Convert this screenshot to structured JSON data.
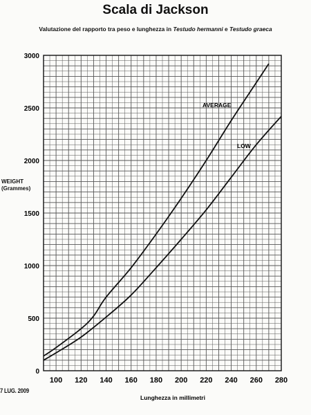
{
  "chart_data": {
    "type": "line",
    "title": "Scala di Jackson",
    "subtitle": {
      "prefix": "Valutazione del rapporto tra peso e lunghezza in ",
      "species1": "Testudo hermanni",
      "conjunction": " e ",
      "species2": "Testudo graeca"
    },
    "xlabel": "Lunghezza in millimetri",
    "ylabel_line1": "WEIGHT",
    "ylabel_line2": "(Grammes)",
    "xlim": [
      90,
      280
    ],
    "ylim": [
      0,
      3000
    ],
    "xticks": [
      100,
      120,
      140,
      160,
      180,
      200,
      220,
      240,
      260,
      280
    ],
    "yticks": [
      0,
      500,
      1000,
      1500,
      2000,
      2500,
      3000
    ],
    "grid": true,
    "series": [
      {
        "name": "AVERAGE",
        "x": [
          90,
          100,
          120,
          130,
          140,
          160,
          180,
          200,
          220,
          240,
          260,
          270
        ],
        "y": [
          140,
          220,
          400,
          520,
          700,
          980,
          1300,
          1640,
          2000,
          2380,
          2740,
          2920
        ]
      },
      {
        "name": "LOW",
        "x": [
          90,
          100,
          120,
          140,
          160,
          180,
          200,
          220,
          240,
          260,
          280
        ],
        "y": [
          100,
          170,
          320,
          510,
          720,
          980,
          1250,
          1530,
          1840,
          2150,
          2420
        ]
      }
    ]
  },
  "stamp": "7 LUG. 2009"
}
